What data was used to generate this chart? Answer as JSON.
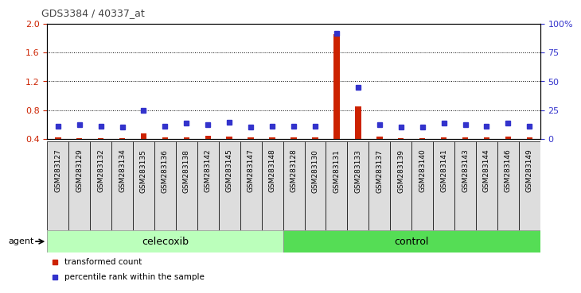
{
  "title": "GDS3384 / 40337_at",
  "samples": [
    "GSM283127",
    "GSM283129",
    "GSM283132",
    "GSM283134",
    "GSM283135",
    "GSM283136",
    "GSM283138",
    "GSM283142",
    "GSM283145",
    "GSM283147",
    "GSM283148",
    "GSM283128",
    "GSM283130",
    "GSM283131",
    "GSM283133",
    "GSM283137",
    "GSM283139",
    "GSM283140",
    "GSM283141",
    "GSM283143",
    "GSM283144",
    "GSM283146",
    "GSM283149"
  ],
  "red_values": [
    0.42,
    0.41,
    0.41,
    0.41,
    0.48,
    0.42,
    0.42,
    0.44,
    0.43,
    0.42,
    0.42,
    0.42,
    0.42,
    1.85,
    0.85,
    0.43,
    0.41,
    0.41,
    0.42,
    0.42,
    0.42,
    0.43,
    0.42
  ],
  "blue_values": [
    0.575,
    0.595,
    0.575,
    0.565,
    0.8,
    0.575,
    0.615,
    0.595,
    0.635,
    0.56,
    0.575,
    0.575,
    0.575,
    1.87,
    1.12,
    0.6,
    0.565,
    0.565,
    0.62,
    0.6,
    0.575,
    0.615,
    0.575
  ],
  "celecoxib_count": 11,
  "control_count": 12,
  "ylim_left": [
    0.4,
    2.0
  ],
  "ylim_right": [
    0,
    100
  ],
  "yticks_left": [
    0.4,
    0.8,
    1.2,
    1.6,
    2.0
  ],
  "yticks_right": [
    0,
    25,
    50,
    75,
    100
  ],
  "ytick_right_labels": [
    "0",
    "25",
    "50",
    "75",
    "100%"
  ],
  "red_color": "#cc2200",
  "blue_color": "#3333cc",
  "celecoxib_color": "#bbffbb",
  "control_color": "#55dd55",
  "agent_label": "agent",
  "celecoxib_label": "celecoxib",
  "control_label": "control",
  "legend_red": "transformed count",
  "legend_blue": "percentile rank within the sample",
  "left_tick_color": "#cc2200",
  "right_tick_color": "#3333cc",
  "title_color": "#444444",
  "bar_width": 0.28,
  "label_bg": "#dddddd"
}
